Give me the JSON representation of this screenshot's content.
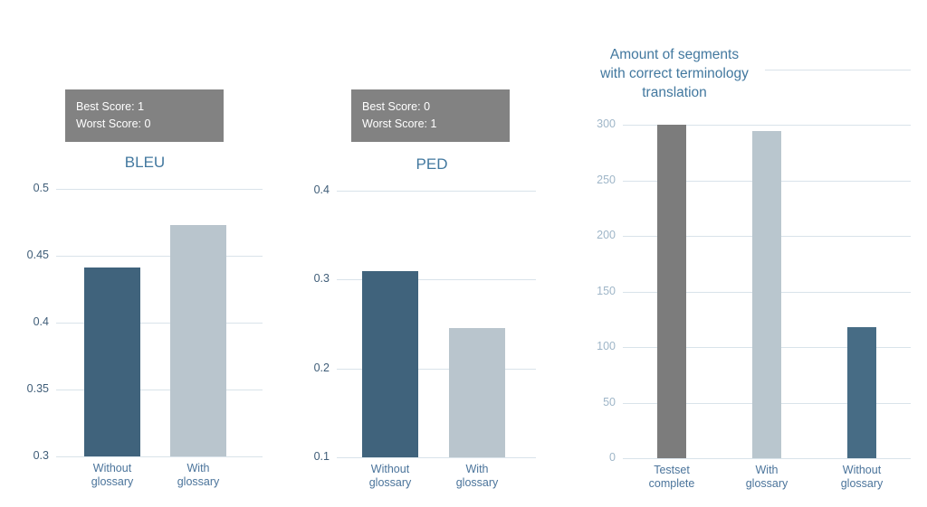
{
  "canvas": {
    "background": "#ffffff"
  },
  "chart_data": [
    {
      "type": "bar",
      "title": "BLEU",
      "score_box": {
        "line1": "Best Score:  1",
        "line2": "Worst Score: 0",
        "bg": "#828282",
        "text_color": "#ffffff"
      },
      "categories": [
        "Without\nglossary",
        "With\nglossary"
      ],
      "values": [
        0.441,
        0.473
      ],
      "bar_colors": [
        "#40637c",
        "#b9c5cd"
      ],
      "ylim": [
        0.3,
        0.5
      ],
      "yticks": [
        0.3,
        0.35,
        0.4,
        0.45,
        0.5
      ],
      "ytick_labels": [
        "0.3",
        "0.35",
        "0.4",
        "0.45",
        "0.5"
      ],
      "tick_color": "#3f5d78",
      "label_color": "#4b749b",
      "grid": true,
      "top_gridline": false,
      "legend": "none"
    },
    {
      "type": "bar",
      "title": "PED",
      "score_box": {
        "line1": "Best Score:  0",
        "line2": "Worst Score: 1",
        "bg": "#828282",
        "text_color": "#ffffff"
      },
      "categories": [
        "Without\nglossary",
        "With\nglossary"
      ],
      "values": [
        0.31,
        0.245
      ],
      "bar_colors": [
        "#40637c",
        "#b9c5cd"
      ],
      "ylim": [
        0.1,
        0.4
      ],
      "yticks": [
        0.1,
        0.2,
        0.3,
        0.4
      ],
      "ytick_labels": [
        "0.1",
        "0.2",
        "0.3",
        "0.4"
      ],
      "tick_color": "#3f5d78",
      "label_color": "#4b749b",
      "grid": true,
      "top_gridline": false,
      "legend": "none"
    },
    {
      "type": "bar",
      "title": "Amount of segments\nwith correct terminology\ntranslation",
      "categories": [
        "Testset\ncomplete",
        "With\nglossary",
        "Without\nglossary"
      ],
      "values": [
        300,
        295,
        118
      ],
      "bar_colors": [
        "#7c7c7c",
        "#b9c6ce",
        "#476c85"
      ],
      "ylim": [
        0,
        350
      ],
      "yticks": [
        0,
        50,
        100,
        150,
        200,
        250,
        300
      ],
      "ytick_labels": [
        "0",
        "50",
        "100",
        "150",
        "200",
        "250",
        "300"
      ],
      "tick_color": "#9fb6c8",
      "label_color": "#4b749b",
      "grid": true,
      "top_gridline": true,
      "legend": "none"
    }
  ]
}
